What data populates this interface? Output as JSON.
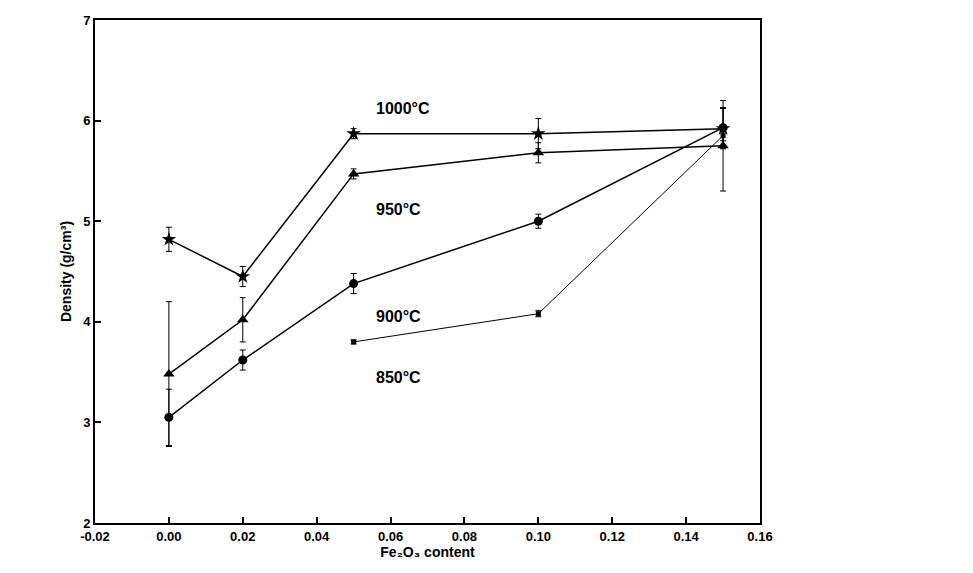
{
  "chart_data": {
    "type": "line",
    "x_label": "Fe₂O₃ content",
    "y_label": "Density (g/cm³)",
    "xlim": [
      -0.02,
      0.16
    ],
    "xticks": [
      -0.02,
      {
        "value": 0,
        "label": "0.00"
      },
      0.02,
      0.04,
      0.06,
      0.08,
      {
        "value": 0.1,
        "label": "0.10"
      },
      0.12,
      0.14,
      0.16
    ],
    "ylim": [
      2,
      7
    ],
    "yticks": [
      2,
      3,
      4,
      5,
      6,
      7
    ],
    "grid": false,
    "series": [
      {
        "name": "1000°C",
        "color": "#000000",
        "marker": "star",
        "line_style": "solid",
        "x": [
          0,
          0.02,
          0.05,
          0.1,
          0.15
        ],
        "values": [
          4.82,
          4.45,
          5.87,
          5.87,
          5.92
        ],
        "error": [
          0.12,
          0.1,
          0.05,
          0.15,
          0.2
        ]
      },
      {
        "name": "950°C",
        "color": "#000000",
        "marker": "triangle-up",
        "line_style": "solid",
        "x": [
          0,
          0.02,
          0.05,
          0.1,
          0.15
        ],
        "values": [
          3.48,
          4.02,
          5.47,
          5.68,
          5.75
        ],
        "error": [
          0.72,
          0.22,
          0.05,
          0.1,
          0.45
        ]
      },
      {
        "name": "900°C",
        "color": "#000000",
        "marker": "circle",
        "line_style": "solid",
        "x": [
          0,
          0.02,
          0.05,
          0.1,
          0.15
        ],
        "values": [
          3.05,
          3.62,
          4.38,
          5.0,
          5.93
        ],
        "error": [
          0.28,
          0.1,
          0.1,
          0.07,
          0.2
        ]
      },
      {
        "name": "850°C",
        "color": "#000000",
        "marker": "square",
        "line_style": "solid",
        "x": [
          0.05,
          0.1,
          0.15
        ],
        "values": [
          3.8,
          4.08,
          5.85
        ],
        "error": [
          0.02,
          0.03,
          0.05
        ]
      }
    ]
  }
}
